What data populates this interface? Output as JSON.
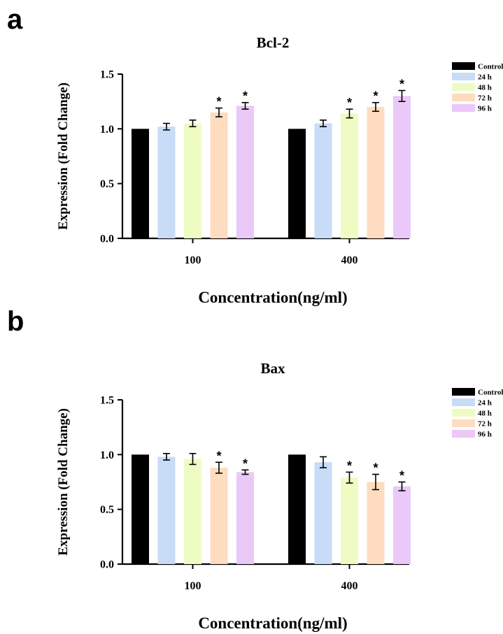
{
  "panels": [
    {
      "letter": "a"
    },
    {
      "letter": "b"
    }
  ],
  "colors": {
    "Control": "#000000",
    "24 h": "#c8dcf7",
    "48 h": "#eefcc3",
    "72 h": "#fddcc0",
    "96 h": "#eac8f7"
  },
  "chart_data": [
    {
      "type": "bar",
      "title": "Bcl-2",
      "xlabel": "Concentration(ng/ml)",
      "ylabel": "Expression (Fold Change)",
      "ylim": [
        0,
        1.5
      ],
      "yticks": [
        "0.0",
        "0.5",
        "1.0",
        "1.5"
      ],
      "categories": [
        "100",
        "400"
      ],
      "legend": "top-right",
      "series": [
        {
          "name": "Control",
          "values": [
            1.0,
            1.0
          ],
          "errors": [
            0,
            0
          ],
          "sig": [
            false,
            false
          ]
        },
        {
          "name": "24 h",
          "values": [
            1.02,
            1.05
          ],
          "errors": [
            0.03,
            0.03
          ],
          "sig": [
            false,
            false
          ]
        },
        {
          "name": "48 h",
          "values": [
            1.05,
            1.14
          ],
          "errors": [
            0.03,
            0.04
          ],
          "sig": [
            false,
            true
          ]
        },
        {
          "name": "72 h",
          "values": [
            1.15,
            1.2
          ],
          "errors": [
            0.04,
            0.04
          ],
          "sig": [
            true,
            true
          ]
        },
        {
          "name": "96 h",
          "values": [
            1.21,
            1.3
          ],
          "errors": [
            0.03,
            0.05
          ],
          "sig": [
            true,
            true
          ]
        }
      ],
      "sig_label": "*"
    },
    {
      "type": "bar",
      "title": "Bax",
      "xlabel": "Concentration(ng/ml)",
      "ylabel": "Expression (Fold Change)",
      "ylim": [
        0,
        1.5
      ],
      "yticks": [
        "0.0",
        "0.5",
        "1.0",
        "1.5"
      ],
      "categories": [
        "100",
        "400"
      ],
      "legend": "top-right",
      "series": [
        {
          "name": "Control",
          "values": [
            1.0,
            1.0
          ],
          "errors": [
            0,
            0
          ],
          "sig": [
            false,
            false
          ]
        },
        {
          "name": "24 h",
          "values": [
            0.98,
            0.93
          ],
          "errors": [
            0.03,
            0.05
          ],
          "sig": [
            false,
            false
          ]
        },
        {
          "name": "48 h",
          "values": [
            0.96,
            0.79
          ],
          "errors": [
            0.05,
            0.05
          ],
          "sig": [
            false,
            true
          ]
        },
        {
          "name": "72 h",
          "values": [
            0.88,
            0.75
          ],
          "errors": [
            0.05,
            0.07
          ],
          "sig": [
            true,
            true
          ]
        },
        {
          "name": "96 h",
          "values": [
            0.84,
            0.71
          ],
          "errors": [
            0.02,
            0.04
          ],
          "sig": [
            true,
            true
          ]
        }
      ],
      "sig_label": "*"
    }
  ]
}
